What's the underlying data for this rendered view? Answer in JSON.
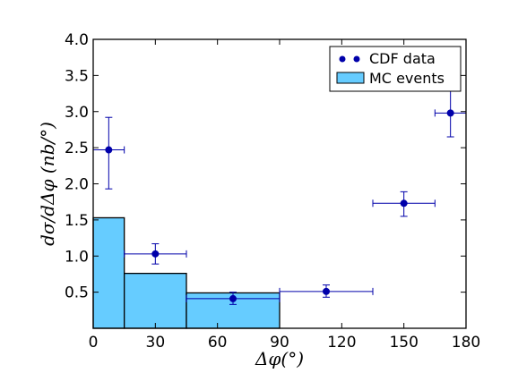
{
  "chart_data": {
    "type": "bar",
    "title": "",
    "xlabel": "Δφ(°)",
    "ylabel": "dσ/dΔφ (nb/°)",
    "xlim": [
      0,
      180
    ],
    "ylim": [
      0,
      4.0
    ],
    "x_ticks": [
      "0",
      "30",
      "60",
      "90",
      "120",
      "150",
      "180"
    ],
    "y_ticks": [
      "0.5",
      "1.0",
      "1.5",
      "2.0",
      "2.5",
      "3.0",
      "3.5",
      "4.0"
    ],
    "grid": false,
    "legend_position": "top-right",
    "histogram": {
      "name": "MC events",
      "color": "#66ccff",
      "bins": [
        {
          "x0": 0,
          "x1": 15,
          "value": 1.53
        },
        {
          "x0": 15,
          "x1": 45,
          "value": 0.76
        },
        {
          "x0": 45,
          "x1": 90,
          "value": 0.49
        }
      ]
    },
    "points": {
      "name": "CDF data",
      "color": "#0000aa",
      "values": [
        {
          "x": 7.5,
          "y": 2.47,
          "x_low": 0,
          "x_high": 15,
          "y_low": 1.93,
          "y_high": 2.92
        },
        {
          "x": 30,
          "y": 1.03,
          "x_low": 15,
          "x_high": 45,
          "y_low": 0.89,
          "y_high": 1.17
        },
        {
          "x": 67.5,
          "y": 0.41,
          "x_low": 45,
          "x_high": 90,
          "y_low": 0.33,
          "y_high": 0.5
        },
        {
          "x": 112.5,
          "y": 0.51,
          "x_low": 90,
          "x_high": 135,
          "y_low": 0.43,
          "y_high": 0.6
        },
        {
          "x": 150,
          "y": 1.73,
          "x_low": 135,
          "x_high": 165,
          "y_low": 1.55,
          "y_high": 1.89
        },
        {
          "x": 172.5,
          "y": 2.98,
          "x_low": 165,
          "x_high": 180,
          "y_low": 2.65,
          "y_high": 3.3
        }
      ]
    },
    "legend": {
      "entries": [
        {
          "label": "CDF data",
          "marker": "dots"
        },
        {
          "label": "MC events",
          "marker": "box"
        }
      ]
    }
  }
}
